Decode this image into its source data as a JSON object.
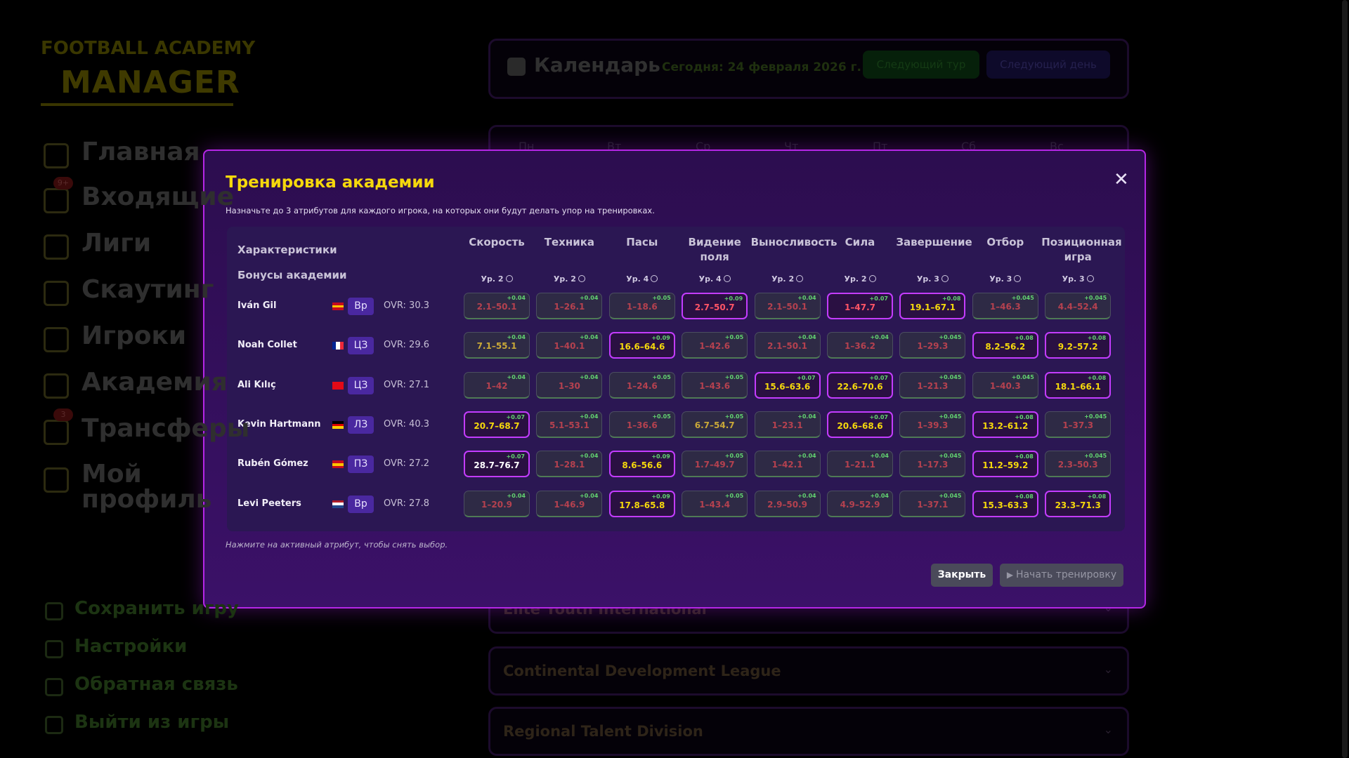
{
  "sidebar": {
    "logo_top": "FOOTBALL ACADEMY",
    "logo_bottom": "MANAGER",
    "nav": [
      {
        "label": "Главная"
      },
      {
        "label": "Входящие",
        "badge": "9+"
      },
      {
        "label": "Лиги"
      },
      {
        "label": "Скаутинг"
      },
      {
        "label": "Игроки"
      },
      {
        "label": "Академия"
      },
      {
        "label": "Трансферы",
        "badge": "3"
      },
      {
        "label": "Мой профиль"
      }
    ],
    "bottom": [
      "Сохранить игру",
      "Настройки",
      "Обратная связь",
      "Выйти из игры"
    ]
  },
  "calendar": {
    "title": "Календарь",
    "today": "Сегодня: 24 февраля 2026 г.",
    "next_round": "Следующий тур",
    "next_day": "Следующий день",
    "weekdays": [
      "Пн",
      "Вт",
      "Ср",
      "Чт",
      "Пт",
      "Сб",
      "Вс"
    ]
  },
  "leagues": [
    "Elite Youth International",
    "Continental Development League",
    "Regional Talent Division"
  ],
  "modal": {
    "title": "Тренировка академии",
    "description": "Назначьте до 3 атрибутов для каждого игрока, на которых они будут делать упор на тренировках.",
    "header_label": "Характеристики",
    "bonus_label": "Бонусы академии",
    "columns": [
      {
        "name": "Скорость",
        "level": "Ур. 2"
      },
      {
        "name": "Техника",
        "level": "Ур. 2"
      },
      {
        "name": "Пасы",
        "level": "Ур. 4"
      },
      {
        "name": "Видение поля",
        "level": "Ур. 4"
      },
      {
        "name": "Выносливость",
        "level": "Ур. 2"
      },
      {
        "name": "Сила",
        "level": "Ур. 2"
      },
      {
        "name": "Завершение",
        "level": "Ур. 3"
      },
      {
        "name": "Отбор",
        "level": "Ур. 3"
      },
      {
        "name": "Позиционная игра",
        "level": "Ур. 3"
      }
    ],
    "players": [
      {
        "name": "Iván Gil",
        "position": "Вр",
        "ovr": "OVR: 30.3",
        "cells": [
          {
            "range": "2.1–50.1",
            "bonus": "+0.04",
            "active": false,
            "tone": "low"
          },
          {
            "range": "1–26.1",
            "bonus": "+0.04",
            "active": false,
            "tone": "low"
          },
          {
            "range": "1–18.6",
            "bonus": "+0.05",
            "active": false,
            "tone": "low"
          },
          {
            "range": "2.7–50.7",
            "bonus": "+0.09",
            "active": true,
            "tone": "low"
          },
          {
            "range": "2.1–50.1",
            "bonus": "+0.04",
            "active": false,
            "tone": "low"
          },
          {
            "range": "1–47.7",
            "bonus": "+0.07",
            "active": true,
            "tone": "low"
          },
          {
            "range": "19.1–67.1",
            "bonus": "+0.08",
            "active": true,
            "tone": "high"
          },
          {
            "range": "1–46.3",
            "bonus": "+0.045",
            "active": false,
            "tone": "low"
          },
          {
            "range": "4.4–52.4",
            "bonus": "+0.045",
            "active": false,
            "tone": "low"
          }
        ]
      },
      {
        "name": "Noah Collet",
        "position": "ЦЗ",
        "ovr": "OVR: 29.6",
        "cells": [
          {
            "range": "7.1–55.1",
            "bonus": "+0.04",
            "active": false,
            "tone": "high"
          },
          {
            "range": "1–40.1",
            "bonus": "+0.04",
            "active": false,
            "tone": "low"
          },
          {
            "range": "16.6–64.6",
            "bonus": "+0.09",
            "active": true,
            "tone": "high"
          },
          {
            "range": "1–42.6",
            "bonus": "+0.05",
            "active": false,
            "tone": "low"
          },
          {
            "range": "2.1–50.1",
            "bonus": "+0.04",
            "active": false,
            "tone": "low"
          },
          {
            "range": "1–36.2",
            "bonus": "+0.04",
            "active": false,
            "tone": "low"
          },
          {
            "range": "1–29.3",
            "bonus": "+0.045",
            "active": false,
            "tone": "low"
          },
          {
            "range": "8.2–56.2",
            "bonus": "+0.08",
            "active": true,
            "tone": "high"
          },
          {
            "range": "9.2–57.2",
            "bonus": "+0.08",
            "active": true,
            "tone": "high"
          }
        ]
      },
      {
        "name": "Ali Kılıç",
        "position": "ЦЗ",
        "ovr": "OVR: 27.1",
        "cells": [
          {
            "range": "1–42",
            "bonus": "+0.04",
            "active": false,
            "tone": "low"
          },
          {
            "range": "1–30",
            "bonus": "+0.04",
            "active": false,
            "tone": "low"
          },
          {
            "range": "1–24.6",
            "bonus": "+0.05",
            "active": false,
            "tone": "low"
          },
          {
            "range": "1–43.6",
            "bonus": "+0.05",
            "active": false,
            "tone": "low"
          },
          {
            "range": "15.6–63.6",
            "bonus": "+0.07",
            "active": true,
            "tone": "high"
          },
          {
            "range": "22.6–70.6",
            "bonus": "+0.07",
            "active": true,
            "tone": "high"
          },
          {
            "range": "1–21.3",
            "bonus": "+0.045",
            "active": false,
            "tone": "low"
          },
          {
            "range": "1–40.3",
            "bonus": "+0.045",
            "active": false,
            "tone": "low"
          },
          {
            "range": "18.1–66.1",
            "bonus": "+0.08",
            "active": true,
            "tone": "high"
          }
        ]
      },
      {
        "name": "Kevin Hartmann",
        "position": "ЛЗ",
        "ovr": "OVR: 40.3",
        "cells": [
          {
            "range": "20.7–68.7",
            "bonus": "+0.07",
            "active": true,
            "tone": "high"
          },
          {
            "range": "5.1–53.1",
            "bonus": "+0.04",
            "active": false,
            "tone": "low"
          },
          {
            "range": "1–36.6",
            "bonus": "+0.05",
            "active": false,
            "tone": "low"
          },
          {
            "range": "6.7–54.7",
            "bonus": "+0.05",
            "active": false,
            "tone": "high"
          },
          {
            "range": "1–23.1",
            "bonus": "+0.04",
            "active": false,
            "tone": "low"
          },
          {
            "range": "20.6–68.6",
            "bonus": "+0.07",
            "active": true,
            "tone": "high"
          },
          {
            "range": "1–39.3",
            "bonus": "+0.045",
            "active": false,
            "tone": "low"
          },
          {
            "range": "13.2–61.2",
            "bonus": "+0.08",
            "active": true,
            "tone": "high"
          },
          {
            "range": "1–37.3",
            "bonus": "+0.045",
            "active": false,
            "tone": "low"
          }
        ]
      },
      {
        "name": "Rubén Gómez",
        "position": "ПЗ",
        "ovr": "OVR: 27.2",
        "cells": [
          {
            "range": "28.7–76.7",
            "bonus": "+0.07",
            "active": true,
            "tone": "top"
          },
          {
            "range": "1–28.1",
            "bonus": "+0.04",
            "active": false,
            "tone": "low"
          },
          {
            "range": "8.6–56.6",
            "bonus": "+0.09",
            "active": true,
            "tone": "high"
          },
          {
            "range": "1.7–49.7",
            "bonus": "+0.05",
            "active": false,
            "tone": "low"
          },
          {
            "range": "1–42.1",
            "bonus": "+0.04",
            "active": false,
            "tone": "low"
          },
          {
            "range": "1–21.1",
            "bonus": "+0.04",
            "active": false,
            "tone": "low"
          },
          {
            "range": "1–17.3",
            "bonus": "+0.045",
            "active": false,
            "tone": "low"
          },
          {
            "range": "11.2–59.2",
            "bonus": "+0.08",
            "active": true,
            "tone": "high"
          },
          {
            "range": "2.3–50.3",
            "bonus": "+0.045",
            "active": false,
            "tone": "low"
          }
        ]
      },
      {
        "name": "Levi Peeters",
        "position": "Вр",
        "ovr": "OVR: 27.8",
        "cells": [
          {
            "range": "1–20.9",
            "bonus": "+0.04",
            "active": false,
            "tone": "low"
          },
          {
            "range": "1–46.9",
            "bonus": "+0.04",
            "active": false,
            "tone": "low"
          },
          {
            "range": "17.8–65.8",
            "bonus": "+0.09",
            "active": true,
            "tone": "high"
          },
          {
            "range": "1–43.4",
            "bonus": "+0.05",
            "active": false,
            "tone": "low"
          },
          {
            "range": "2.9–50.9",
            "bonus": "+0.04",
            "active": false,
            "tone": "low"
          },
          {
            "range": "4.9–52.9",
            "bonus": "+0.04",
            "active": false,
            "tone": "low"
          },
          {
            "range": "1–37.1",
            "bonus": "+0.045",
            "active": false,
            "tone": "low"
          },
          {
            "range": "15.3–63.3",
            "bonus": "+0.08",
            "active": true,
            "tone": "high"
          },
          {
            "range": "23.3–71.3",
            "bonus": "+0.08",
            "active": true,
            "tone": "high"
          }
        ]
      }
    ],
    "note": "Нажмите на активный атрибут, чтобы снять выбор.",
    "close": "Закрыть",
    "start": "Начать тренировку"
  }
}
